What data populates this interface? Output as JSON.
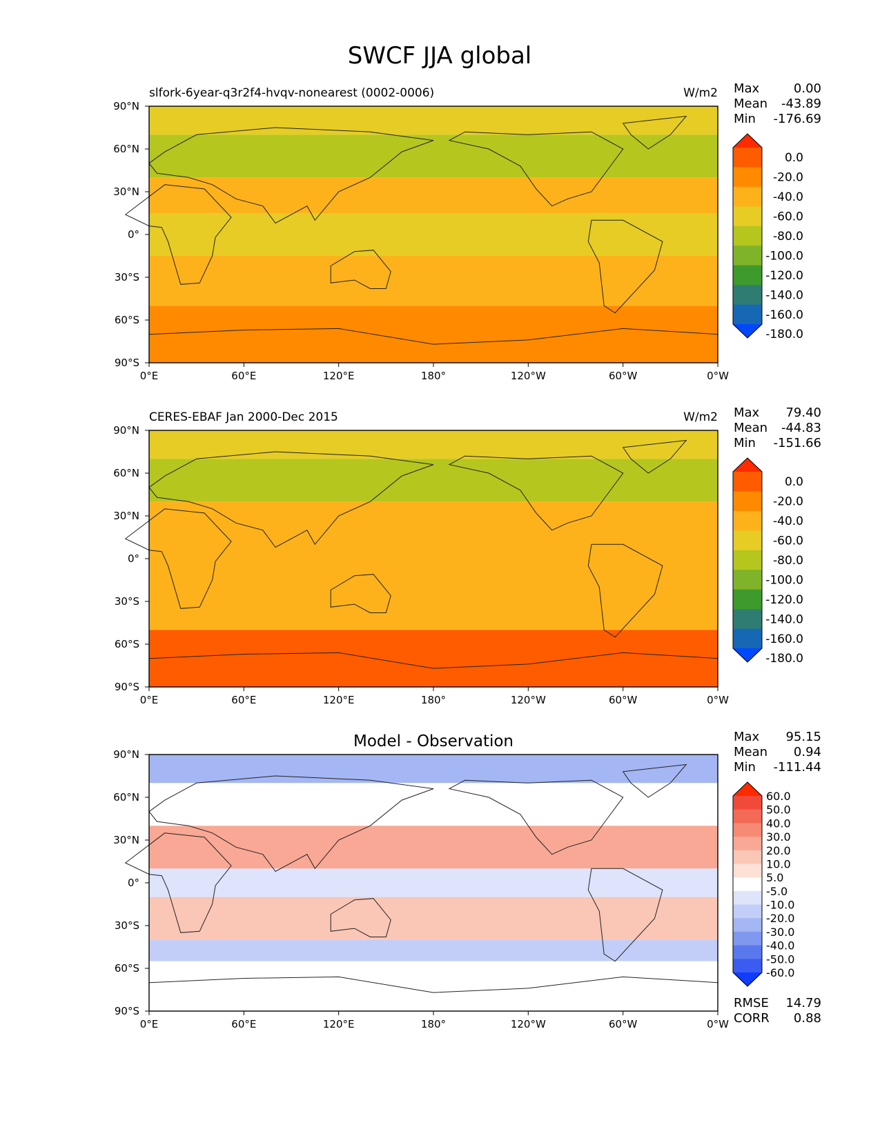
{
  "figure": {
    "title": "SWCF JJA global"
  },
  "chart_data": [
    {
      "type": "heatmap",
      "title_left": "slfork-6year-q3r2f4-hvqv-nonearest (0002-0006)",
      "title_right": "W/m2",
      "stats": [
        {
          "label": "Max",
          "value": "0.00"
        },
        {
          "label": "Mean",
          "value": "-43.89"
        },
        {
          "label": "Min",
          "value": "-176.69"
        }
      ],
      "colorbar": {
        "labels": [
          "0.0",
          "-20.0",
          "-40.0",
          "-60.0",
          "-80.0",
          "-100.0",
          "-120.0",
          "-140.0",
          "-160.0",
          "-180.0"
        ],
        "colors": [
          "#ff2a00",
          "#ff5c00",
          "#ff8a00",
          "#fdb21b",
          "#e6cc25",
          "#b5c61f",
          "#7fb32a",
          "#3f9a2c",
          "#2f7d72",
          "#1668b5",
          "#0048ff"
        ]
      },
      "xticks": [
        "0°E",
        "60°E",
        "120°E",
        "180°",
        "120°W",
        "60°W",
        "0°W"
      ],
      "yticks": [
        "90°N",
        "60°N",
        "30°N",
        "0°",
        "30°S",
        "60°S",
        "90°S"
      ],
      "xlim": [
        0,
        360
      ],
      "ylim": [
        -90,
        90
      ],
      "zonal_profile": [
        {
          "lat_range": [
            70,
            90
          ],
          "value": -60
        },
        {
          "lat_range": [
            40,
            70
          ],
          "value": -90
        },
        {
          "lat_range": [
            15,
            40
          ],
          "value": -40
        },
        {
          "lat_range": [
            -15,
            15
          ],
          "value": -60
        },
        {
          "lat_range": [
            -50,
            -15
          ],
          "value": -45
        },
        {
          "lat_range": [
            -90,
            -50
          ],
          "value": -20
        }
      ]
    },
    {
      "type": "heatmap",
      "title_left": "CERES-EBAF Jan 2000-Dec 2015",
      "title_right": "W/m2",
      "stats": [
        {
          "label": "Max",
          "value": "79.40"
        },
        {
          "label": "Mean",
          "value": "-44.83"
        },
        {
          "label": "Min",
          "value": "-151.66"
        }
      ],
      "colorbar": {
        "labels": [
          "0.0",
          "-20.0",
          "-40.0",
          "-60.0",
          "-80.0",
          "-100.0",
          "-120.0",
          "-140.0",
          "-160.0",
          "-180.0"
        ],
        "colors": [
          "#ff2a00",
          "#ff5c00",
          "#ff8a00",
          "#fdb21b",
          "#e6cc25",
          "#b5c61f",
          "#7fb32a",
          "#3f9a2c",
          "#2f7d72",
          "#1668b5",
          "#0048ff"
        ]
      },
      "xticks": [
        "0°E",
        "60°E",
        "120°E",
        "180°",
        "120°W",
        "60°W",
        "0°W"
      ],
      "yticks": [
        "90°N",
        "60°N",
        "30°N",
        "0°",
        "30°S",
        "60°S",
        "90°S"
      ],
      "xlim": [
        0,
        360
      ],
      "ylim": [
        -90,
        90
      ],
      "zonal_profile": [
        {
          "lat_range": [
            70,
            90
          ],
          "value": -60
        },
        {
          "lat_range": [
            40,
            70
          ],
          "value": -90
        },
        {
          "lat_range": [
            15,
            40
          ],
          "value": -45
        },
        {
          "lat_range": [
            -15,
            15
          ],
          "value": -55
        },
        {
          "lat_range": [
            -50,
            -15
          ],
          "value": -40
        },
        {
          "lat_range": [
            -90,
            -50
          ],
          "value": -10
        }
      ]
    },
    {
      "type": "heatmap",
      "title_center": "Model - Observation",
      "stats": [
        {
          "label": "Max",
          "value": "95.15"
        },
        {
          "label": "Mean",
          "value": "0.94"
        },
        {
          "label": "Min",
          "value": "-111.44"
        }
      ],
      "colorbar": {
        "labels": [
          "60.0",
          "50.0",
          "40.0",
          "30.0",
          "20.0",
          "10.0",
          "5.0",
          "-5.0",
          "-10.0",
          "-20.0",
          "-30.0",
          "-40.0",
          "-50.0",
          "-60.0"
        ],
        "colors": [
          "#ff2a00",
          "#f24a3a",
          "#f46a56",
          "#f68a74",
          "#f8a894",
          "#fac6b6",
          "#fde0d6",
          "#ffffff",
          "#dde4fb",
          "#c2cef7",
          "#a4b6f3",
          "#8098ef",
          "#5a78ee",
          "#3a5cf0",
          "#0f3cff"
        ]
      },
      "footer_stats": [
        {
          "label": "RMSE",
          "value": "14.79"
        },
        {
          "label": "CORR",
          "value": "0.88"
        }
      ],
      "xticks": [
        "0°E",
        "60°E",
        "120°E",
        "180°",
        "120°W",
        "60°W",
        "0°W"
      ],
      "yticks": [
        "90°N",
        "60°N",
        "30°N",
        "0°",
        "30°S",
        "60°S",
        "90°S"
      ],
      "xlim": [
        0,
        360
      ],
      "ylim": [
        -90,
        90
      ],
      "zonal_profile": [
        {
          "lat_range": [
            70,
            90
          ],
          "value": -30
        },
        {
          "lat_range": [
            40,
            70
          ],
          "value": 0
        },
        {
          "lat_range": [
            10,
            40
          ],
          "value": 20
        },
        {
          "lat_range": [
            -10,
            10
          ],
          "value": -10
        },
        {
          "lat_range": [
            -40,
            -10
          ],
          "value": 10
        },
        {
          "lat_range": [
            -55,
            -40
          ],
          "value": -20
        },
        {
          "lat_range": [
            -90,
            -55
          ],
          "value": 0
        }
      ]
    }
  ]
}
